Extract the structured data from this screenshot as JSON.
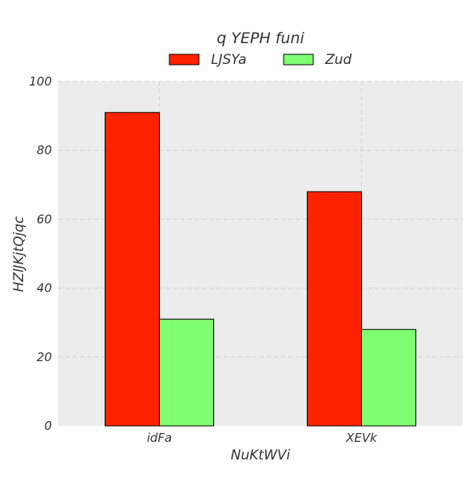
{
  "chart_data": {
    "type": "bar",
    "title": "q YEPH funi",
    "xlabel": "NuKtWVi",
    "ylabel": "HZlJKjtQjqc",
    "categories": [
      "idFa",
      "XEVk"
    ],
    "series": [
      {
        "name": "LJSYa",
        "values": [
          91,
          68
        ],
        "color": "#ff2200"
      },
      {
        "name": "Zud",
        "values": [
          31,
          28
        ],
        "color": "#80ff73"
      }
    ],
    "ylim": [
      0,
      100
    ],
    "yticks": [
      0,
      20,
      40,
      60,
      80,
      100
    ],
    "grid": true,
    "legend_position": "top-center",
    "background_color": "#ececec",
    "grid_color": "#d0d0d0"
  }
}
